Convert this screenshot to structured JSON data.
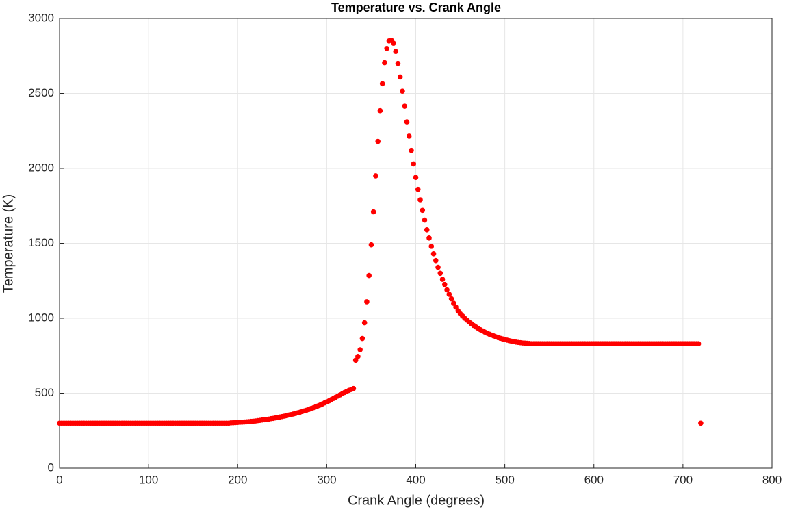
{
  "chart_data": {
    "type": "scatter",
    "title": "Temperature vs. Crank Angle",
    "xlabel": "Crank Angle (degrees)",
    "ylabel": "Temperature (K)",
    "xlim": [
      0,
      800
    ],
    "xticks": [
      0,
      100,
      200,
      300,
      400,
      500,
      600,
      700,
      800
    ],
    "ylim": [
      0,
      3000
    ],
    "yticks": [
      0,
      500,
      1000,
      1500,
      2000,
      2500,
      3000
    ],
    "grid": true,
    "series": [
      {
        "color": "#ff0000",
        "x": [
          0,
          2.5,
          5,
          7.5,
          10,
          12.5,
          15,
          17.5,
          20,
          22.5,
          25,
          27.5,
          30,
          32.5,
          35,
          37.5,
          40,
          42.5,
          45,
          47.5,
          50,
          52.5,
          55,
          57.5,
          60,
          62.5,
          65,
          67.5,
          70,
          72.5,
          75,
          77.5,
          80,
          82.5,
          85,
          87.5,
          90,
          92.5,
          95,
          97.5,
          100,
          102.5,
          105,
          107.5,
          110,
          112.5,
          115,
          117.5,
          120,
          122.5,
          125,
          127.5,
          130,
          132.5,
          135,
          137.5,
          140,
          142.5,
          145,
          147.5,
          150,
          152.5,
          155,
          157.5,
          160,
          162.5,
          165,
          167.5,
          170,
          172.5,
          175,
          177.5,
          180,
          182.5,
          185,
          187.5,
          190,
          192.5,
          195,
          197.5,
          200,
          202.5,
          205,
          207.5,
          210,
          212.5,
          215,
          217.5,
          220,
          222.5,
          225,
          227.5,
          230,
          232.5,
          235,
          237.5,
          240,
          242.5,
          245,
          247.5,
          250,
          252.5,
          255,
          257.5,
          260,
          262.5,
          265,
          267.5,
          270,
          272.5,
          275,
          277.5,
          280,
          282.5,
          285,
          287.5,
          290,
          292.5,
          295,
          297.5,
          300,
          302.5,
          305,
          307.5,
          310,
          312.5,
          315,
          317.5,
          320,
          322.5,
          325,
          327.5,
          330,
          332.5,
          335,
          337.5,
          340,
          342.5,
          345,
          347.5,
          350,
          352.5,
          355,
          357.5,
          360,
          362.5,
          365,
          367.5,
          370,
          372.5,
          375,
          377.5,
          380,
          382.5,
          385,
          387.5,
          390,
          392.5,
          395,
          397.5,
          400,
          402.5,
          405,
          407.5,
          410,
          412.5,
          415,
          417.5,
          420,
          422.5,
          425,
          427.5,
          430,
          432.5,
          435,
          437.5,
          440,
          442.5,
          445,
          447.5,
          450,
          452.5,
          455,
          457.5,
          460,
          462.5,
          465,
          467.5,
          470,
          472.5,
          475,
          477.5,
          480,
          482.5,
          485,
          487.5,
          490,
          492.5,
          495,
          497.5,
          500,
          502.5,
          505,
          507.5,
          510,
          512.5,
          515,
          517.5,
          520,
          522.5,
          525,
          527.5,
          530,
          532.5,
          535,
          537.5,
          540,
          542.5,
          545,
          547.5,
          550,
          552.5,
          555,
          557.5,
          560,
          562.5,
          565,
          567.5,
          570,
          572.5,
          575,
          577.5,
          580,
          582.5,
          585,
          587.5,
          590,
          592.5,
          595,
          597.5,
          600,
          602.5,
          605,
          607.5,
          610,
          612.5,
          615,
          617.5,
          620,
          622.5,
          625,
          627.5,
          630,
          632.5,
          635,
          637.5,
          640,
          642.5,
          645,
          647.5,
          650,
          652.5,
          655,
          657.5,
          660,
          662.5,
          665,
          667.5,
          670,
          672.5,
          675,
          677.5,
          680,
          682.5,
          685,
          687.5,
          690,
          692.5,
          695,
          697.5,
          700,
          702.5,
          705,
          707.5,
          710,
          712.5,
          715,
          717.5,
          720
        ],
        "values": [
          300,
          300,
          300,
          300,
          300,
          300,
          300,
          300,
          300,
          300,
          300,
          300,
          300,
          300,
          300,
          300,
          300,
          300,
          300,
          300,
          300,
          300,
          300,
          300,
          300,
          300,
          300,
          300,
          300,
          300,
          300,
          300,
          300,
          300,
          300,
          300,
          300,
          300,
          300,
          300,
          300,
          300,
          300,
          300,
          300,
          300,
          300,
          300,
          300,
          300,
          300,
          300,
          300,
          300,
          300,
          300,
          300,
          300,
          300,
          300,
          300,
          300,
          300,
          300,
          300,
          300,
          300,
          300,
          300,
          300,
          300,
          300,
          300,
          300,
          300,
          300,
          300,
          302,
          303,
          304,
          305,
          306,
          307,
          308,
          309,
          310,
          312,
          313,
          315,
          317,
          319,
          321,
          323,
          325,
          327,
          330,
          332,
          335,
          338,
          341,
          344,
          347,
          350,
          354,
          357,
          361,
          365,
          369,
          373,
          378,
          382,
          387,
          392,
          398,
          403,
          409,
          415,
          421,
          428,
          435,
          442,
          449,
          457,
          465,
          473,
          481,
          489,
          497,
          505,
          512,
          519,
          525,
          531,
          720,
          745,
          790,
          865,
          970,
          1110,
          1285,
          1490,
          1710,
          1950,
          2180,
          2385,
          2565,
          2705,
          2800,
          2850,
          2855,
          2835,
          2780,
          2700,
          2610,
          2515,
          2415,
          2310,
          2215,
          2120,
          2030,
          1940,
          1860,
          1790,
          1720,
          1655,
          1590,
          1535,
          1480,
          1430,
          1385,
          1340,
          1300,
          1260,
          1225,
          1190,
          1160,
          1130,
          1100,
          1075,
          1050,
          1030,
          1015,
          1000,
          987,
          975,
          963,
          952,
          942,
          933,
          924,
          916,
          908,
          901,
          894,
          888,
          882,
          876,
          871,
          866,
          862,
          858,
          854,
          850,
          847,
          844,
          841,
          839,
          837,
          835,
          834,
          833,
          832,
          830,
          830,
          830,
          830,
          830,
          830,
          830,
          830,
          830,
          830,
          830,
          830,
          830,
          830,
          830,
          830,
          830,
          830,
          830,
          830,
          830,
          830,
          830,
          830,
          830,
          830,
          830,
          830,
          830,
          830,
          830,
          830,
          830,
          830,
          830,
          830,
          830,
          830,
          830,
          830,
          830,
          830,
          830,
          830,
          830,
          830,
          830,
          830,
          830,
          830,
          830,
          830,
          830,
          830,
          830,
          830,
          830,
          830,
          830,
          830,
          830,
          830,
          830,
          830,
          830,
          830,
          830,
          830,
          830,
          830,
          830,
          830,
          830,
          830,
          830,
          830,
          300
        ]
      }
    ]
  }
}
